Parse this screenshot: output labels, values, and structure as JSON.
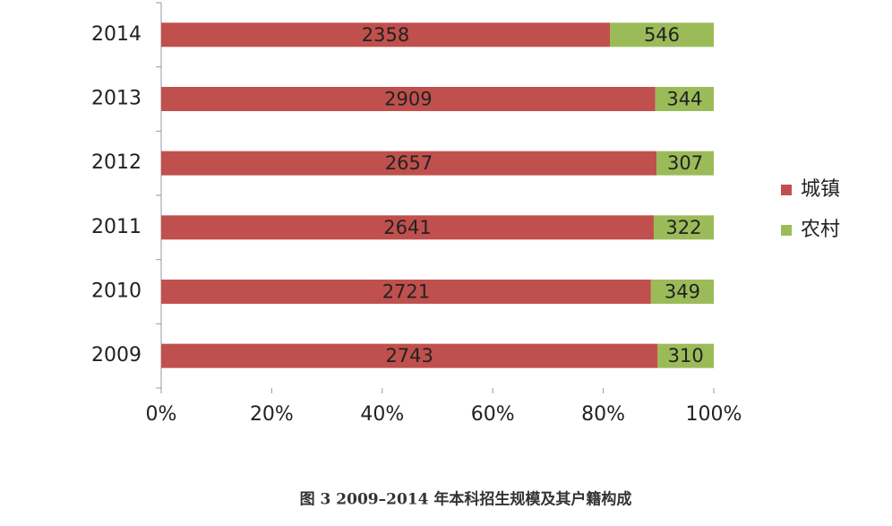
{
  "chart_data": {
    "type": "bar",
    "orientation": "horizontal",
    "stacking": "percent",
    "caption": "图 3  2009–2014 年本科招生规模及其户籍构成",
    "categories": [
      "2014",
      "2013",
      "2012",
      "2011",
      "2010",
      "2009"
    ],
    "series": [
      {
        "name": "城镇",
        "color": "#c0504d",
        "values": [
          2358,
          2909,
          2657,
          2641,
          2721,
          2743
        ]
      },
      {
        "name": "农村",
        "color": "#9bbb59",
        "values": [
          546,
          344,
          307,
          322,
          349,
          310
        ]
      }
    ],
    "xlim": [
      0,
      100
    ],
    "xticks": [
      {
        "value": 0,
        "label": "0%"
      },
      {
        "value": 20,
        "label": "20%"
      },
      {
        "value": 40,
        "label": "40%"
      },
      {
        "value": 60,
        "label": "60%"
      },
      {
        "value": 80,
        "label": "80%"
      },
      {
        "value": 100,
        "label": "100%"
      }
    ],
    "legend": "right"
  }
}
